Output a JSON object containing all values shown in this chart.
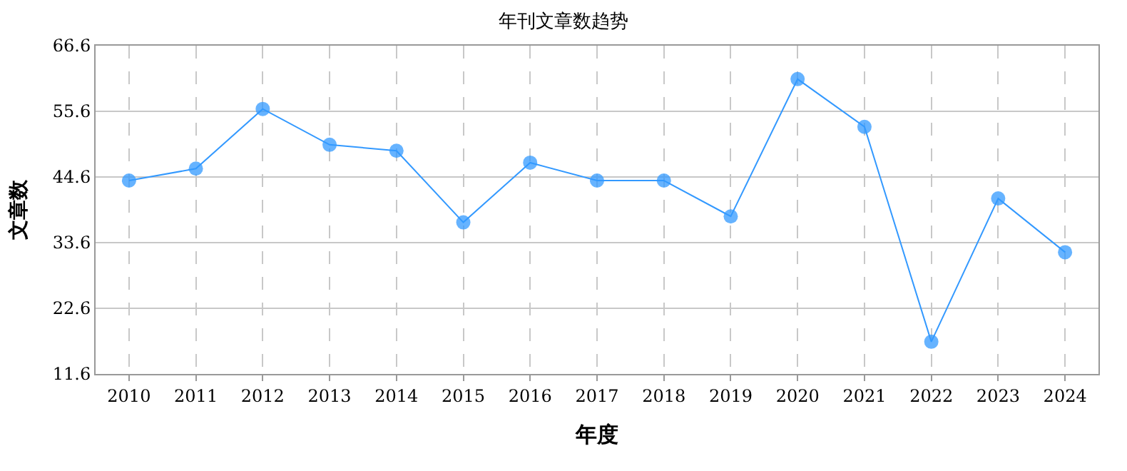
{
  "chart_data": {
    "type": "line",
    "title": "年刊文章数趋势",
    "xlabel": "年度",
    "ylabel": "文章数",
    "categories": [
      "2010",
      "2011",
      "2012",
      "2013",
      "2014",
      "2015",
      "2016",
      "2017",
      "2018",
      "2019",
      "2020",
      "2021",
      "2022",
      "2023",
      "2024"
    ],
    "series": [
      {
        "color": "#3399ff",
        "values": [
          44,
          46,
          56,
          50,
          49,
          37,
          47,
          44,
          44,
          38,
          61,
          53,
          17,
          41,
          32
        ]
      }
    ],
    "ylim": [
      11.6,
      66.6
    ],
    "yticks": [
      11.6,
      22.6,
      33.6,
      44.6,
      55.6,
      66.6
    ],
    "grid": true,
    "marker": "circle",
    "line_style": "solid"
  }
}
